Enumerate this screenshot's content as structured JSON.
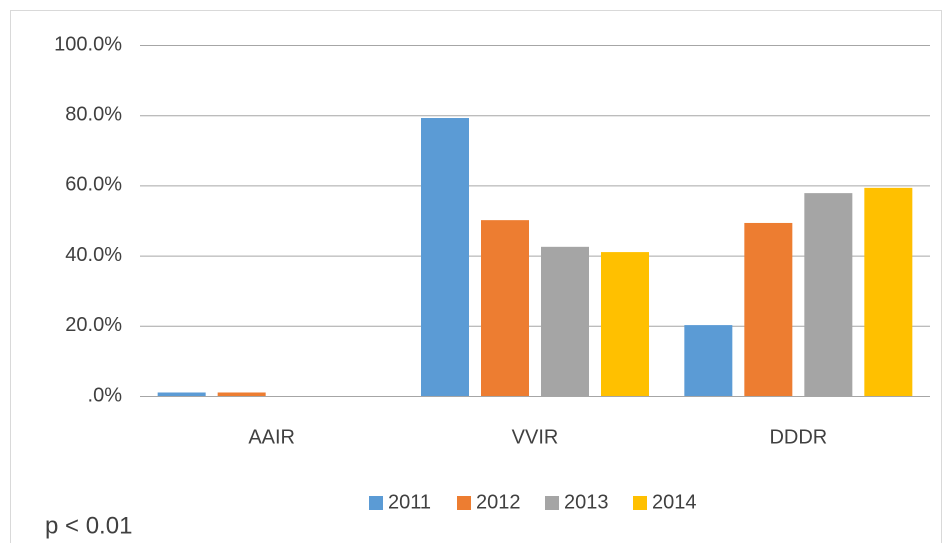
{
  "chart_data": {
    "type": "bar",
    "categories": [
      "AAIR",
      "VVIR",
      "DDDR"
    ],
    "series": [
      {
        "name": "2011",
        "color": "#5b9bd5",
        "values": [
          1.0,
          79.2,
          20.2
        ]
      },
      {
        "name": "2012",
        "color": "#ed7d31",
        "values": [
          1.0,
          50.1,
          49.3
        ]
      },
      {
        "name": "2013",
        "color": "#a5a5a5",
        "values": [
          0,
          42.5,
          57.8
        ]
      },
      {
        "name": "2014",
        "color": "#ffc000",
        "values": [
          0,
          41.0,
          59.3
        ]
      }
    ],
    "ylim": [
      0,
      100
    ],
    "yticks": [
      {
        "value": 0,
        "label": ".0%"
      },
      {
        "value": 20,
        "label": "20.0%"
      },
      {
        "value": 40,
        "label": "40.0%"
      },
      {
        "value": 60,
        "label": "60.0%"
      },
      {
        "value": 80,
        "label": "80.0%"
      },
      {
        "value": 100,
        "label": "100.0%"
      }
    ],
    "grid": true,
    "legend": "bottom",
    "annotation": "p < 0.01"
  }
}
